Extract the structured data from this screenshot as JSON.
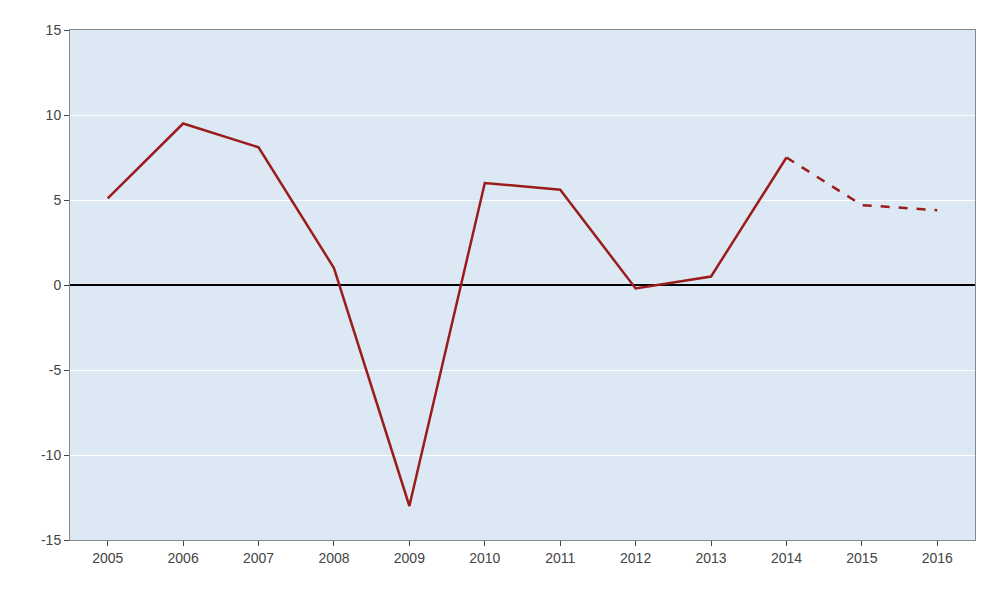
{
  "chart_data": {
    "type": "line",
    "series": [
      {
        "x": [
          2005,
          2006,
          2007,
          2008,
          2009,
          2010,
          2011,
          2012,
          2013,
          2014
        ],
        "values": [
          5.1,
          9.5,
          8.1,
          1.0,
          -13.0,
          6.0,
          5.6,
          -0.2,
          0.5,
          7.5
        ],
        "color": "#9B1C1C",
        "line_style": "solid"
      },
      {
        "x": [
          2014,
          2015,
          2016
        ],
        "values": [
          7.5,
          4.7,
          4.4
        ],
        "color": "#9B1C1C",
        "line_style": "dashed"
      }
    ],
    "xlim": [
      2004.5,
      2016.5
    ],
    "xticks": [
      2005,
      2006,
      2007,
      2008,
      2009,
      2010,
      2011,
      2012,
      2013,
      2014,
      2015,
      2016
    ],
    "ylim": [
      -15,
      15
    ],
    "yticks": [
      -15,
      -10,
      -5,
      0,
      5,
      10,
      15
    ],
    "grid": "y"
  }
}
